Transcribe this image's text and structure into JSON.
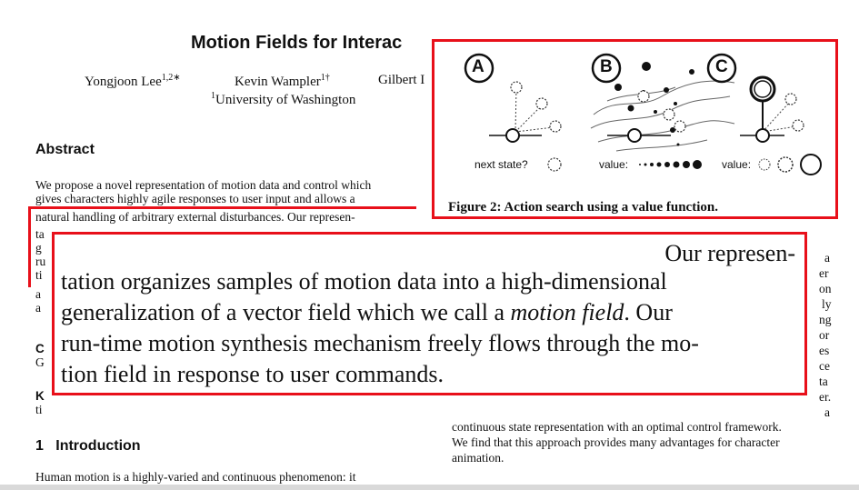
{
  "paper": {
    "title": "Motion Fields for Interac",
    "authors": [
      {
        "name": "Yongjoon Lee",
        "sup": "1,2∗"
      },
      {
        "name": "Kevin Wampler",
        "sup": "1†"
      },
      {
        "name": "Gilbert I",
        "sup": ""
      }
    ],
    "affiliation": {
      "sup": "1",
      "name": "University of Washington"
    },
    "abstract_heading": "Abstract",
    "abstract_lines": [
      "We propose a novel representation of motion data and control which",
      "gives characters highly agile responses to user input and allows a",
      "natural handling of arbitrary external disturbances.  Our represen-"
    ],
    "left_fragments": [
      "ta",
      "g",
      "ru",
      "ti",
      "a",
      "a",
      "C",
      "G",
      "K",
      "ti"
    ],
    "right_fragments": [
      "a",
      "er",
      "on",
      "ly",
      "ng",
      "or",
      "es",
      "ce",
      "ta",
      "er.",
      "a"
    ],
    "right_lines": [
      "continuous state representation with an optimal control framework.",
      "We find that this approach provides many advantages for character",
      "animation."
    ],
    "intro_number": "1",
    "intro_heading": "Introduction",
    "intro_line": "Human motion is a highly-varied and continuous phenomenon: it"
  },
  "zoom": {
    "line1": "Our represen-",
    "line2": "tation organizes samples of motion data into a high-dimensional",
    "line3_pre": "generalization of a vector field which we call a ",
    "line3_em": "motion field",
    "line3_post": ".  Our",
    "line4": "run-time motion synthesis mechanism freely flows through the mo-",
    "line5": "tion field in response to user commands."
  },
  "figure": {
    "panels": [
      "A",
      "B",
      "C"
    ],
    "label_a": "next state?",
    "label_b": "value:",
    "label_c": "value:",
    "caption": "Figure 2:  Action search using a value function."
  },
  "colors": {
    "highlight": "#e8101a"
  }
}
